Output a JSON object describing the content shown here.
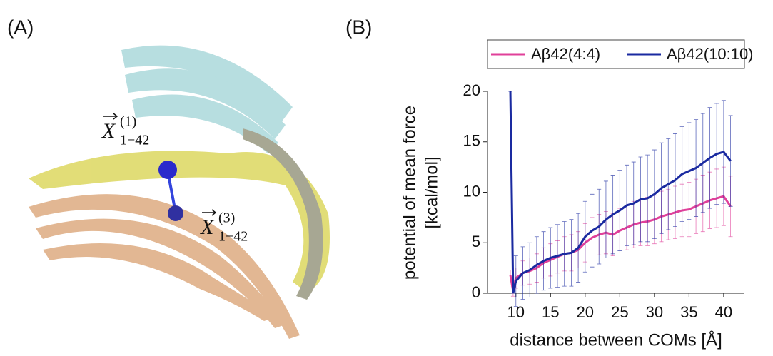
{
  "figure": {
    "panel_a_label": "(A)",
    "panel_b_label": "(B)",
    "annotations": [
      {
        "symbol": "X",
        "superscript": "(1)",
        "subscript": "1−42"
      },
      {
        "symbol": "X",
        "superscript": "(3)",
        "subscript": "1−42"
      }
    ]
  },
  "chart_data": {
    "type": "line",
    "xlabel": "distance between COMs [Å]",
    "ylabel": [
      "potential of mean force",
      "[kcal/mol]"
    ],
    "x": [
      9.2,
      9.6,
      10,
      11,
      12,
      13,
      14,
      15,
      16,
      17,
      18,
      19,
      20,
      21,
      22,
      23,
      24,
      25,
      26,
      27,
      28,
      29,
      30,
      31,
      32,
      33,
      34,
      35,
      36,
      37,
      38,
      39,
      40,
      41
    ],
    "series": [
      {
        "name": "Aβ42(4:4)",
        "color": "#e0409a",
        "values": [
          1.8,
          0.2,
          1.5,
          2.0,
          2.2,
          2.5,
          3.0,
          3.3,
          3.6,
          3.9,
          4.0,
          4.3,
          5.0,
          5.5,
          5.8,
          6.0,
          5.8,
          6.2,
          6.5,
          6.8,
          7.0,
          7.1,
          7.3,
          7.6,
          7.8,
          8.0,
          8.2,
          8.3,
          8.6,
          8.9,
          9.2,
          9.4,
          9.6,
          8.6
        ],
        "errors": [
          0.5,
          0.5,
          1.0,
          1.2,
          1.3,
          1.4,
          1.5,
          1.6,
          1.6,
          1.7,
          1.8,
          1.8,
          1.9,
          2.0,
          2.0,
          2.1,
          2.1,
          2.2,
          2.2,
          2.3,
          2.3,
          2.4,
          2.4,
          2.5,
          2.5,
          2.6,
          2.6,
          2.7,
          2.7,
          2.8,
          2.8,
          2.9,
          2.9,
          3.0
        ]
      },
      {
        "name": "Aβ42(10:10)",
        "color": "#1a2aa0",
        "values": [
          20,
          0,
          1.2,
          2.0,
          2.3,
          2.8,
          3.2,
          3.5,
          3.7,
          3.9,
          4.0,
          4.5,
          5.6,
          6.2,
          6.6,
          7.3,
          7.8,
          8.2,
          8.7,
          8.9,
          9.3,
          9.4,
          9.8,
          10.4,
          10.8,
          11.2,
          11.8,
          12.1,
          12.4,
          12.9,
          13.4,
          13.8,
          14.0,
          13.1
        ],
        "errors": [
          0.0,
          0.0,
          2.5,
          2.6,
          2.7,
          2.8,
          2.9,
          3.0,
          3.1,
          3.2,
          3.3,
          3.4,
          3.5,
          3.6,
          3.7,
          3.8,
          3.9,
          4.0,
          4.0,
          4.1,
          4.2,
          4.3,
          4.4,
          4.5,
          4.5,
          4.6,
          4.7,
          4.8,
          4.8,
          4.9,
          5.0,
          5.0,
          5.1,
          4.5
        ]
      }
    ],
    "xlim": [
      5.9,
      43
    ],
    "ylim": [
      0,
      20
    ],
    "xticks": [
      10,
      15,
      20,
      25,
      30,
      35,
      40
    ],
    "yticks": [
      0,
      5,
      10,
      15,
      20
    ],
    "legend": "top"
  }
}
